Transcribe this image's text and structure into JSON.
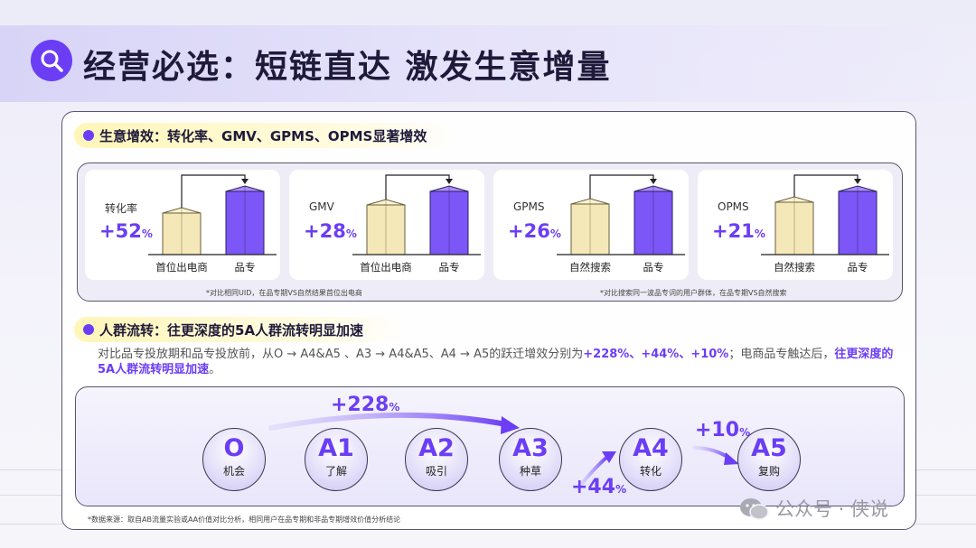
{
  "title": "经营必选：短链直达 激发生意增量",
  "section1": {
    "heading": "生意增效：转化率、GMV、GPMS、OPMS显著增效",
    "note_left": "*对比相同UID，在品专期VS自然结果首位出电商",
    "note_right": "*对比搜索同一波品专词的用户群体，在品专期VS自然搜索"
  },
  "chart_data": {
    "type": "bar",
    "title": "",
    "subcharts": [
      {
        "metric": "转化率",
        "lift_text": "+52",
        "lift_unit": "%",
        "lift": 52,
        "categories": [
          "首位出电商",
          "品专"
        ]
      },
      {
        "metric": "GMV",
        "lift_text": "+28",
        "lift_unit": "%",
        "lift": 28,
        "categories": [
          "首位出电商",
          "品专"
        ]
      },
      {
        "metric": "GPMS",
        "lift_text": "+26",
        "lift_unit": "%",
        "lift": 26,
        "categories": [
          "自然搜索",
          "品专"
        ]
      },
      {
        "metric": "OPMS",
        "lift_text": "+21",
        "lift_unit": "%",
        "lift": 21,
        "categories": [
          "自然搜索",
          "品专"
        ]
      }
    ],
    "colors": {
      "baseline": "#f4e8b8",
      "brand": "#7c56f6"
    }
  },
  "section2": {
    "heading": "人群流转：往更深度的5A人群流转明显加速",
    "para_plain1": "对比品专投放期和品专投放前，从O → A4&A5 、A3 → A4&A5、A4 → A5的跃迁增效分别为",
    "para_hl1": "+228%、+44%、+10%",
    "para_plain2": "；电商品专触达后，",
    "para_hl2": "往更深度的5A人群流转明显加速",
    "para_plain3": "。"
  },
  "flow": {
    "nodes": [
      {
        "code": "O",
        "name": "机会"
      },
      {
        "code": "A1",
        "name": "了解"
      },
      {
        "code": "A2",
        "name": "吸引"
      },
      {
        "code": "A3",
        "name": "种草"
      },
      {
        "code": "A4",
        "name": "转化"
      },
      {
        "code": "A5",
        "name": "复购"
      }
    ],
    "lift1": "+228",
    "lift2": "+44",
    "lift3": "+10",
    "unit": "%"
  },
  "source_note": "*数据来源：取自AB流量实验或AA价值对比分析，相同用户在品专期和非品专期增效价值分析结论",
  "watermark": "公众号 · 侠说",
  "colors": {
    "accent": "#6b3ef5",
    "highlight": "#fff6b8",
    "node_fill": "#e2ddf9"
  }
}
